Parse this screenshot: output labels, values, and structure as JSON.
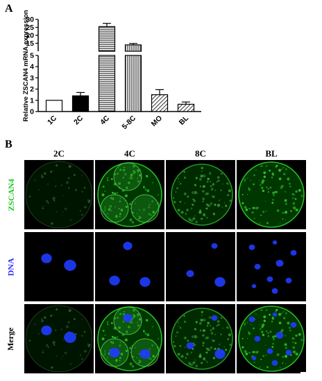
{
  "panel_a_label": "A",
  "panel_b_label": "B",
  "chart_data": {
    "type": "bar",
    "ylabel": "Relative ZSCAN4 mRNA expression",
    "categories": [
      "1C",
      "2C",
      "4C",
      "5-8C",
      "MO",
      "BL"
    ],
    "values": [
      1.0,
      1.4,
      25.5,
      14.0,
      1.5,
      0.65
    ],
    "errors": [
      0.0,
      0.3,
      2.0,
      0.9,
      0.45,
      0.2
    ],
    "patterns": [
      "white",
      "black",
      "horizontal",
      "vertical",
      "diagonal",
      "diagonal"
    ],
    "axis_break": {
      "lower": [
        0,
        5
      ],
      "upper": [
        10,
        30
      ]
    },
    "yticks_lower": [
      "0",
      "1",
      "2",
      "3",
      "4",
      "5"
    ],
    "yticks_upper": [
      "15",
      "20",
      "25",
      "30"
    ]
  },
  "panel_b": {
    "columns": [
      "2C",
      "4C",
      "8C",
      "BL"
    ],
    "rows": [
      {
        "label": "ZSCAN4",
        "color": "#22c822"
      },
      {
        "label": "DNA",
        "color": "#2a2aff"
      },
      {
        "label": "Merge",
        "color": "#000000"
      }
    ]
  }
}
